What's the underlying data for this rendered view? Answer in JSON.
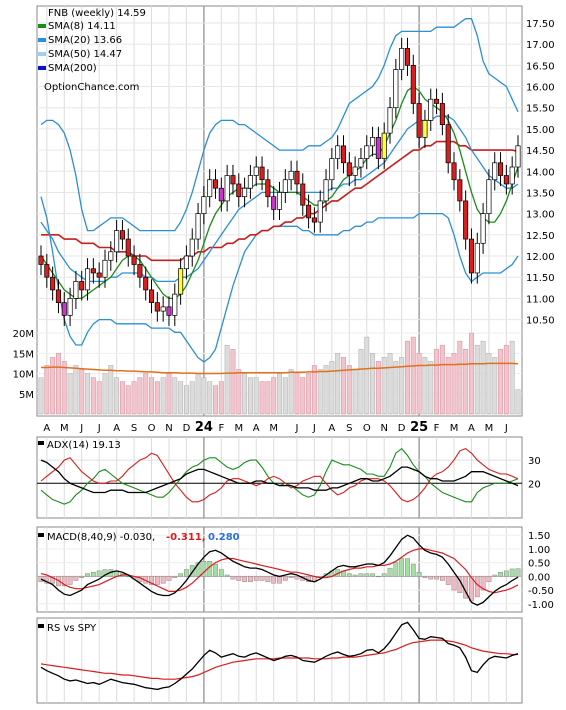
{
  "chart_data": [
    {
      "type": "candlestick",
      "title": "FNB (weekly) 14.59",
      "ticker": "FNB",
      "period": "weekly",
      "last_price": 14.59,
      "watermark": "OptionChance.com",
      "ylim": [
        9.9,
        17.9
      ],
      "y_ticks": [
        "10.50",
        "11.00",
        "11.50",
        "12.00",
        "12.50",
        "13.00",
        "13.50",
        "14.00",
        "14.50",
        "15.00",
        "15.50",
        "16.00",
        "16.50",
        "17.00",
        "17.50"
      ],
      "x_ticks": [
        "A",
        "M",
        "J",
        "J",
        "A",
        "S",
        "O",
        "N",
        "D",
        "24",
        "F",
        "M",
        "A",
        "M",
        "J",
        "J",
        "A",
        "S",
        "O",
        "N",
        "D",
        "25",
        "F",
        "M",
        "A",
        "M",
        "J"
      ],
      "legend": [
        {
          "label": "SMA(8) 14.11",
          "color": "#1a8c1a"
        },
        {
          "label": "SMA(20) 13.66",
          "color": "#2b8fd6"
        },
        {
          "label": "SMA(50) 14.47",
          "color": "#9cd0f2"
        },
        {
          "label": "SMA(200)",
          "color": "#1010c8"
        }
      ],
      "close": [
        11.8,
        11.5,
        11.2,
        10.9,
        10.6,
        11.0,
        11.4,
        11.2,
        11.7,
        11.6,
        11.5,
        11.9,
        12.1,
        12.6,
        12.4,
        12.0,
        11.8,
        11.5,
        11.2,
        10.9,
        10.7,
        10.8,
        10.6,
        11.1,
        11.7,
        12.0,
        12.4,
        13.0,
        13.4,
        13.8,
        13.6,
        13.3,
        13.9,
        13.7,
        13.4,
        13.6,
        13.9,
        14.1,
        13.8,
        13.4,
        13.1,
        13.5,
        13.8,
        14.0,
        13.7,
        13.2,
        12.9,
        12.8,
        13.3,
        13.8,
        14.3,
        14.6,
        14.2,
        13.9,
        14.1,
        14.3,
        14.6,
        14.8,
        14.3,
        14.9,
        15.5,
        16.4,
        16.9,
        16.5,
        15.6,
        14.8,
        15.2,
        15.7,
        15.6,
        15.1,
        14.2,
        13.8,
        13.3,
        12.4,
        11.6,
        12.3,
        13.0,
        13.8,
        14.2,
        13.9,
        13.7,
        14.1,
        14.6
      ],
      "sma8": [
        12.0,
        11.8,
        11.6,
        11.4,
        11.2,
        11.1,
        11.0,
        11.0,
        11.1,
        11.2,
        11.3,
        11.4,
        11.5,
        11.7,
        11.9,
        12.0,
        12.0,
        11.9,
        11.7,
        11.5,
        11.3,
        11.1,
        11.0,
        11.0,
        11.1,
        11.3,
        11.6,
        11.9,
        12.3,
        12.7,
        13.0,
        13.2,
        13.4,
        13.5,
        13.6,
        13.6,
        13.6,
        13.7,
        13.7,
        13.7,
        13.6,
        13.5,
        13.5,
        13.5,
        13.5,
        13.4,
        13.3,
        13.2,
        13.2,
        13.3,
        13.4,
        13.6,
        13.8,
        13.9,
        14.0,
        14.1,
        14.3,
        14.4,
        14.4,
        14.6,
        14.9,
        15.2,
        15.6,
        15.9,
        16.0,
        15.9,
        15.7,
        15.6,
        15.5,
        15.4,
        15.2,
        14.9,
        14.5,
        14.0,
        13.5,
        13.1,
        12.9,
        12.8,
        12.8,
        13.0,
        13.3,
        13.7,
        14.1
      ],
      "sma20": [
        12.8,
        12.6,
        12.4,
        12.1,
        11.9,
        11.7,
        11.6,
        11.5,
        11.4,
        11.4,
        11.4,
        11.4,
        11.5,
        11.5,
        11.6,
        11.6,
        11.6,
        11.6,
        11.5,
        11.5,
        11.4,
        11.4,
        11.4,
        11.4,
        11.5,
        11.5,
        11.6,
        11.7,
        11.9,
        12.1,
        12.3,
        12.5,
        12.7,
        12.9,
        13.1,
        13.2,
        13.3,
        13.4,
        13.5,
        13.5,
        13.5,
        13.5,
        13.5,
        13.5,
        13.5,
        13.5,
        13.5,
        13.5,
        13.5,
        13.5,
        13.6,
        13.6,
        13.7,
        13.7,
        13.8,
        13.8,
        13.9,
        14.0,
        14.1,
        14.2,
        14.4,
        14.6,
        14.8,
        15.0,
        15.1,
        15.2,
        15.2,
        15.2,
        15.3,
        15.3,
        15.3,
        15.2,
        15.0,
        14.8,
        14.5,
        14.3,
        14.1,
        13.9,
        13.8,
        13.7,
        13.6,
        13.6,
        13.7
      ],
      "sma50": [
        12.5,
        12.5,
        12.5,
        12.5,
        12.4,
        12.4,
        12.4,
        12.3,
        12.3,
        12.3,
        12.2,
        12.2,
        12.2,
        12.1,
        12.1,
        12.1,
        12.0,
        12.0,
        12.0,
        11.9,
        11.9,
        11.9,
        11.9,
        11.9,
        11.9,
        12.0,
        12.0,
        12.1,
        12.1,
        12.2,
        12.2,
        12.2,
        12.3,
        12.3,
        12.4,
        12.4,
        12.5,
        12.5,
        12.6,
        12.6,
        12.7,
        12.7,
        12.8,
        12.8,
        12.9,
        12.9,
        13.0,
        13.0,
        13.1,
        13.2,
        13.3,
        13.3,
        13.4,
        13.5,
        13.6,
        13.6,
        13.7,
        13.8,
        13.9,
        14.0,
        14.1,
        14.2,
        14.3,
        14.4,
        14.5,
        14.5,
        14.6,
        14.6,
        14.7,
        14.7,
        14.7,
        14.7,
        14.6,
        14.6,
        14.5,
        14.5,
        14.5,
        14.5,
        14.5,
        14.5,
        14.5,
        14.5,
        14.47
      ],
      "bb_upper": [
        15.1,
        15.2,
        15.2,
        15.1,
        14.9,
        14.5,
        13.9,
        13.1,
        12.6,
        12.6,
        12.7,
        12.8,
        12.9,
        12.9,
        12.9,
        12.8,
        12.7,
        12.6,
        12.6,
        12.6,
        12.6,
        12.6,
        12.6,
        12.6,
        12.8,
        13.1,
        13.5,
        14.0,
        14.5,
        14.9,
        15.1,
        15.2,
        15.2,
        15.2,
        15.1,
        15.1,
        15.0,
        14.9,
        14.8,
        14.7,
        14.6,
        14.5,
        14.5,
        14.5,
        14.5,
        14.5,
        14.6,
        14.6,
        14.6,
        14.7,
        14.8,
        15.0,
        15.3,
        15.6,
        15.7,
        15.8,
        15.9,
        16.0,
        16.2,
        16.5,
        16.9,
        17.2,
        17.3,
        17.3,
        17.3,
        17.3,
        17.3,
        17.3,
        17.4,
        17.4,
        17.4,
        17.4,
        17.5,
        17.6,
        17.6,
        17.2,
        16.6,
        16.3,
        16.2,
        16.1,
        16.0,
        15.7,
        15.4
      ],
      "bb_lower": [
        13.4,
        12.9,
        12.1,
        11.2,
        10.5,
        10.1,
        9.9,
        9.9,
        10.2,
        10.4,
        10.5,
        10.5,
        10.5,
        10.4,
        10.4,
        10.4,
        10.4,
        10.4,
        10.4,
        10.3,
        10.3,
        10.3,
        10.3,
        10.2,
        10.2,
        10.0,
        9.8,
        9.6,
        9.5,
        9.6,
        9.8,
        10.3,
        10.8,
        11.3,
        11.7,
        12.1,
        12.3,
        12.5,
        12.6,
        12.6,
        12.7,
        12.7,
        12.7,
        12.7,
        12.7,
        12.6,
        12.6,
        12.5,
        12.5,
        12.5,
        12.5,
        12.5,
        12.6,
        12.6,
        12.7,
        12.7,
        12.8,
        12.8,
        12.9,
        12.9,
        12.9,
        12.9,
        12.9,
        12.9,
        12.9,
        13.0,
        13.0,
        13.0,
        13.0,
        13.0,
        12.9,
        12.5,
        12.0,
        11.6,
        11.4,
        11.5,
        11.6,
        11.6,
        11.6,
        11.6,
        11.7,
        11.8,
        12.0
      ]
    },
    {
      "type": "bar",
      "title": "Volume",
      "y_ticks": [
        "5M",
        "10M",
        "15M",
        "20M"
      ],
      "ylim": [
        0,
        22
      ],
      "volume": [
        9,
        12,
        14,
        15,
        13,
        10,
        12,
        11,
        10,
        9,
        8,
        10,
        12,
        9,
        8,
        7,
        8,
        9,
        10,
        9,
        8,
        9,
        10,
        9,
        8,
        7,
        8,
        10,
        9,
        8,
        7,
        8,
        17,
        16,
        11,
        10,
        9,
        9,
        8,
        8,
        9,
        10,
        9,
        11,
        10,
        9,
        10,
        12,
        11,
        12,
        13,
        15,
        14,
        12,
        11,
        16,
        19,
        15,
        13,
        14,
        15,
        13,
        14,
        18,
        19,
        15,
        14,
        13,
        16,
        17,
        14,
        15,
        18,
        16,
        20,
        17,
        18,
        15,
        14,
        16,
        17,
        18,
        6
      ],
      "volume_avg": [
        11.5,
        11.5,
        11.6,
        11.6,
        11.5,
        11.4,
        11.3,
        11.2,
        11.1,
        11.0,
        10.9,
        10.8,
        10.8,
        10.7,
        10.7,
        10.6,
        10.6,
        10.5,
        10.4,
        10.4,
        10.3,
        10.2,
        10.2,
        10.2,
        10.1,
        10.1,
        10.1,
        10.0,
        10.0,
        10.0,
        10.0,
        10.0,
        10.1,
        10.1,
        10.2,
        10.2,
        10.2,
        10.2,
        10.2,
        10.2,
        10.2,
        10.2,
        10.2,
        10.3,
        10.3,
        10.3,
        10.4,
        10.4,
        10.5,
        10.5,
        10.6,
        10.7,
        10.8,
        10.9,
        11.0,
        11.1,
        11.2,
        11.3,
        11.3,
        11.4,
        11.5,
        11.6,
        11.7,
        11.8,
        11.9,
        12.0,
        12.0,
        12.1,
        12.1,
        12.2,
        12.2,
        12.2,
        12.3,
        12.3,
        12.4,
        12.4,
        12.4,
        12.5,
        12.5,
        12.5,
        12.5,
        12.5,
        12.4
      ]
    },
    {
      "type": "line",
      "title": "ADX(14) 19.13",
      "y_ticks": [
        "20",
        "30"
      ],
      "ylim": [
        5,
        40
      ],
      "adx": [
        30,
        29,
        27,
        25,
        22,
        20,
        19,
        18,
        17,
        16,
        16,
        16,
        17,
        17,
        17,
        16,
        16,
        16,
        16,
        17,
        18,
        19,
        20,
        21,
        22,
        24,
        25,
        26,
        26,
        25,
        24,
        23,
        22,
        21,
        20,
        20,
        20,
        21,
        21,
        20,
        20,
        19,
        19,
        19,
        18,
        18,
        18,
        17,
        17,
        17,
        18,
        18,
        19,
        20,
        21,
        22,
        22,
        21,
        21,
        22,
        23,
        25,
        27,
        27,
        26,
        25,
        23,
        22,
        22,
        21,
        21,
        21,
        22,
        23,
        25,
        25,
        25,
        24,
        23,
        22,
        21,
        20,
        19
      ],
      "di_plus": [
        17,
        15,
        13,
        12,
        11,
        12,
        15,
        17,
        20,
        22,
        25,
        26,
        24,
        22,
        20,
        19,
        18,
        17,
        16,
        15,
        14,
        14,
        16,
        19,
        22,
        25,
        27,
        28,
        30,
        31,
        31,
        29,
        27,
        26,
        27,
        29,
        30,
        30,
        27,
        23,
        20,
        19,
        20,
        19,
        17,
        15,
        14,
        15,
        19,
        25,
        30,
        29,
        28,
        28,
        27,
        26,
        24,
        24,
        23,
        23,
        27,
        33,
        35,
        32,
        28,
        25,
        23,
        20,
        18,
        16,
        15,
        14,
        13,
        12,
        12,
        16,
        18,
        19,
        20,
        20,
        20,
        21,
        22
      ],
      "di_minus": [
        21,
        23,
        25,
        27,
        30,
        31,
        28,
        25,
        23,
        21,
        20,
        20,
        21,
        21,
        23,
        26,
        28,
        30,
        31,
        33,
        32,
        28,
        24,
        20,
        17,
        14,
        12,
        12,
        13,
        15,
        16,
        18,
        21,
        22,
        22,
        21,
        20,
        19,
        20,
        22,
        23,
        22,
        20,
        18,
        19,
        21,
        22,
        23,
        23,
        20,
        17,
        15,
        16,
        18,
        19,
        21,
        22,
        22,
        22,
        21,
        19,
        16,
        13,
        12,
        13,
        15,
        18,
        22,
        24,
        25,
        27,
        30,
        34,
        35,
        33,
        30,
        28,
        26,
        25,
        24,
        24,
        23,
        22
      ]
    },
    {
      "type": "line",
      "title": "MACD(8,40,9) -0.030,",
      "signal_label": "-0.311,",
      "hist_label": "0.280",
      "y_ticks": [
        "1.50",
        "1.00",
        "0.50",
        "0.00",
        "-0.50",
        "-1.00"
      ],
      "ylim": [
        -1.3,
        1.8
      ],
      "macd": [
        -0.1,
        -0.2,
        -0.3,
        -0.5,
        -0.65,
        -0.7,
        -0.6,
        -0.5,
        -0.3,
        -0.2,
        -0.1,
        0.05,
        0.15,
        0.2,
        0.15,
        0.05,
        -0.1,
        -0.25,
        -0.4,
        -0.55,
        -0.65,
        -0.7,
        -0.7,
        -0.6,
        -0.4,
        -0.15,
        0.15,
        0.45,
        0.7,
        0.9,
        0.95,
        0.85,
        0.7,
        0.55,
        0.45,
        0.35,
        0.3,
        0.3,
        0.25,
        0.15,
        0.05,
        0.0,
        0.05,
        0.1,
        0.05,
        -0.05,
        -0.15,
        -0.2,
        -0.1,
        0.05,
        0.2,
        0.35,
        0.4,
        0.35,
        0.35,
        0.4,
        0.45,
        0.45,
        0.4,
        0.5,
        0.75,
        1.05,
        1.35,
        1.5,
        1.4,
        1.15,
        0.95,
        0.85,
        0.8,
        0.7,
        0.45,
        0.15,
        -0.15,
        -0.55,
        -0.95,
        -1.05,
        -0.95,
        -0.75,
        -0.55,
        -0.4,
        -0.3,
        -0.15,
        -0.03
      ],
      "signal": [
        0.1,
        0.05,
        -0.05,
        -0.15,
        -0.3,
        -0.4,
        -0.45,
        -0.45,
        -0.4,
        -0.35,
        -0.3,
        -0.2,
        -0.1,
        0.0,
        0.05,
        0.05,
        0.0,
        -0.05,
        -0.15,
        -0.25,
        -0.35,
        -0.45,
        -0.55,
        -0.55,
        -0.5,
        -0.4,
        -0.25,
        -0.05,
        0.15,
        0.35,
        0.5,
        0.6,
        0.65,
        0.65,
        0.6,
        0.55,
        0.5,
        0.45,
        0.4,
        0.35,
        0.3,
        0.25,
        0.2,
        0.15,
        0.15,
        0.1,
        0.05,
        0.0,
        -0.05,
        -0.05,
        0.0,
        0.1,
        0.2,
        0.25,
        0.3,
        0.3,
        0.35,
        0.35,
        0.4,
        0.4,
        0.45,
        0.55,
        0.7,
        0.85,
        0.95,
        1.0,
        1.0,
        0.95,
        0.9,
        0.85,
        0.75,
        0.65,
        0.45,
        0.25,
        -0.05,
        -0.3,
        -0.45,
        -0.55,
        -0.6,
        -0.55,
        -0.5,
        -0.42,
        -0.311
      ]
    },
    {
      "type": "line",
      "title": "RS vs SPY",
      "ylim": [
        0,
        10
      ],
      "rs": [
        4.2,
        3.8,
        3.5,
        3.2,
        2.8,
        2.6,
        2.7,
        2.5,
        2.3,
        2.4,
        2.2,
        2.5,
        2.8,
        2.6,
        2.4,
        2.3,
        2.2,
        2.0,
        1.8,
        1.7,
        1.6,
        1.8,
        1.9,
        2.3,
        2.8,
        3.4,
        4.0,
        4.8,
        5.6,
        6.2,
        5.9,
        5.4,
        5.6,
        5.8,
        5.5,
        5.4,
        5.7,
        5.9,
        5.6,
        5.3,
        5.0,
        5.2,
        5.5,
        5.6,
        5.4,
        5.0,
        4.9,
        4.8,
        5.1,
        5.5,
        5.8,
        6.0,
        5.7,
        5.5,
        5.6,
        5.8,
        6.2,
        6.3,
        5.9,
        6.4,
        7.2,
        8.2,
        9.2,
        9.5,
        8.6,
        7.6,
        7.5,
        7.8,
        7.7,
        7.6,
        7.0,
        6.8,
        6.5,
        5.4,
        3.8,
        3.6,
        4.5,
        5.2,
        5.5,
        5.4,
        5.3,
        5.6,
        5.8
      ],
      "rs_avg": [
        4.6,
        4.5,
        4.4,
        4.3,
        4.2,
        4.1,
        4.0,
        3.9,
        3.8,
        3.7,
        3.6,
        3.5,
        3.5,
        3.4,
        3.3,
        3.3,
        3.2,
        3.1,
        3.0,
        2.9,
        2.9,
        2.8,
        2.8,
        2.8,
        2.9,
        3.0,
        3.1,
        3.3,
        3.6,
        3.9,
        4.2,
        4.4,
        4.6,
        4.8,
        4.9,
        5.0,
        5.1,
        5.2,
        5.2,
        5.2,
        5.2,
        5.3,
        5.3,
        5.3,
        5.3,
        5.3,
        5.3,
        5.2,
        5.2,
        5.2,
        5.3,
        5.3,
        5.4,
        5.4,
        5.4,
        5.5,
        5.6,
        5.7,
        5.8,
        5.9,
        6.1,
        6.3,
        6.6,
        6.9,
        7.1,
        7.2,
        7.3,
        7.4,
        7.4,
        7.4,
        7.3,
        7.2,
        7.0,
        6.8,
        6.5,
        6.3,
        6.1,
        6.0,
        5.9,
        5.8,
        5.8,
        5.7,
        5.7
      ]
    }
  ]
}
